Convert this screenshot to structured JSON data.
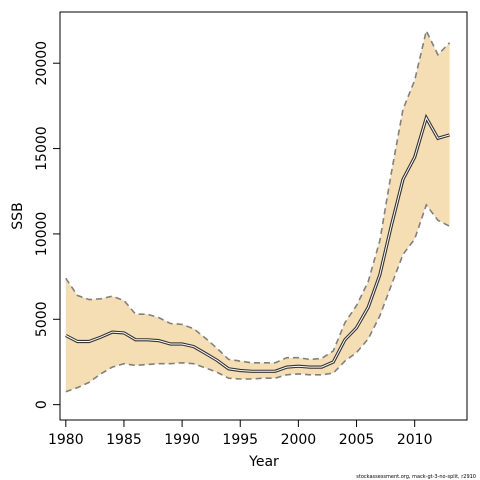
{
  "chart_data": {
    "type": "line",
    "xlabel": "Year",
    "ylabel": "SSB",
    "xlim": [
      1979.5,
      2014.5
    ],
    "ylim": [
      -900,
      23000
    ],
    "x_ticks": [
      1980,
      1985,
      1990,
      1995,
      2000,
      2005,
      2010
    ],
    "y_ticks": [
      0,
      5000,
      10000,
      15000,
      20000
    ],
    "grid": false,
    "legend": "none",
    "colors": {
      "band": "#f5deb3",
      "bound": "#808080",
      "estimate": "#333333"
    },
    "series": [
      {
        "role": "estimate",
        "x": [
          1980,
          1981,
          1982,
          1983,
          1984,
          1985,
          1986,
          1987,
          1988,
          1989,
          1990,
          1991,
          1992,
          1993,
          1994,
          1995,
          1996,
          1997,
          1998,
          1999,
          2000,
          2001,
          2002,
          2003,
          2004,
          2005,
          2006,
          2007,
          2008,
          2009,
          2010,
          2011,
          2012,
          2013
        ],
        "y": [
          4050,
          3700,
          3700,
          3950,
          4250,
          4200,
          3800,
          3800,
          3750,
          3550,
          3550,
          3400,
          3000,
          2600,
          2100,
          2000,
          1950,
          1950,
          1950,
          2200,
          2250,
          2200,
          2200,
          2500,
          3800,
          4500,
          5700,
          7600,
          10500,
          13200,
          14500,
          16800,
          15600,
          15800
        ]
      },
      {
        "role": "upper",
        "x": [
          1980,
          1981,
          1982,
          1983,
          1984,
          1985,
          1986,
          1987,
          1988,
          1989,
          1990,
          1991,
          1992,
          1993,
          1994,
          1995,
          1996,
          1997,
          1998,
          1999,
          2000,
          2001,
          2002,
          2003,
          2004,
          2005,
          2006,
          2007,
          2008,
          2009,
          2010,
          2011,
          2012,
          2013
        ],
        "y": [
          7400,
          6400,
          6150,
          6200,
          6350,
          6100,
          5300,
          5300,
          5100,
          4750,
          4700,
          4450,
          3900,
          3300,
          2650,
          2550,
          2450,
          2450,
          2450,
          2750,
          2750,
          2650,
          2700,
          3150,
          4800,
          5800,
          7200,
          9600,
          13600,
          17300,
          19000,
          21900,
          20500,
          21200
        ]
      },
      {
        "role": "lower",
        "x": [
          1980,
          1981,
          1982,
          1983,
          1984,
          1985,
          1986,
          1987,
          1988,
          1989,
          1990,
          1991,
          1992,
          1993,
          1994,
          1995,
          1996,
          1997,
          1998,
          1999,
          2000,
          2001,
          2002,
          2003,
          2004,
          2005,
          2006,
          2007,
          2008,
          2009,
          2010,
          2011,
          2012,
          2013
        ],
        "y": [
          750,
          1000,
          1300,
          1800,
          2200,
          2400,
          2300,
          2350,
          2400,
          2400,
          2450,
          2400,
          2150,
          1900,
          1550,
          1500,
          1500,
          1550,
          1550,
          1750,
          1800,
          1750,
          1750,
          1850,
          2550,
          3050,
          3850,
          5200,
          7000,
          8800,
          9700,
          11700,
          10800,
          10450
        ]
      }
    ]
  },
  "footer": {
    "credit": "stockassessment.org, mack-gt-3-no-split, r2910"
  }
}
